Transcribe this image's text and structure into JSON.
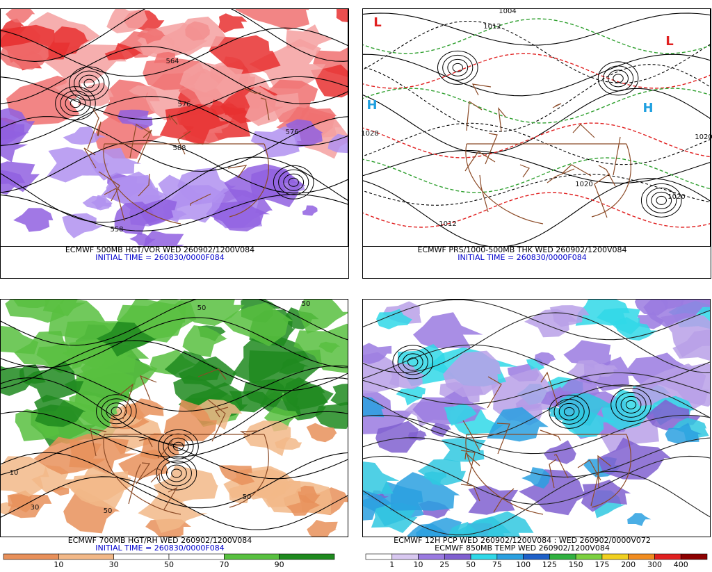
{
  "panels": [
    {
      "caption_lines": [
        {
          "text": "ECMWF 500MB HGT/VOR WED 260902/1200V084",
          "color": "#000000"
        },
        {
          "text": "INITIAL TIME = 260830/0000F084",
          "color": "#0000cc"
        }
      ],
      "theme": "vorticity",
      "map_labels": [
        "564",
        "576",
        "588",
        "558",
        "576"
      ]
    },
    {
      "caption_lines": [
        {
          "text": "ECMWF PRS/1000-500MB THK WED 260902/1200V084",
          "color": "#000000"
        },
        {
          "text": "INITIAL TIME = 260830/0000F084",
          "color": "#0000cc"
        }
      ],
      "theme": "pressure",
      "map_labels": [
        "1004",
        "1012",
        "1020",
        "1028",
        "1012",
        "1020",
        "1020",
        "L",
        "H",
        "L",
        "H"
      ]
    },
    {
      "caption_lines": [
        {
          "text": "ECMWF 700MB HGT/RH WED 260902/1200V084",
          "color": "#000000"
        },
        {
          "text": "INITIAL TIME = 260830/0000F084",
          "color": "#0000cc"
        }
      ],
      "theme": "humidity",
      "map_labels": [
        "50",
        "50",
        "10",
        "30",
        "50",
        "50"
      ],
      "colorbar": {
        "labels": [
          10,
          30,
          50,
          70,
          90
        ],
        "colors": [
          "#e8905a",
          "#f2b888",
          "#ffffff",
          "#ffffff",
          "#58c040",
          "#1e8a1e"
        ]
      }
    },
    {
      "caption_lines": [
        {
          "text": "ECMWF 12H PCP WED 260902/1200V084 : WED 260902/0000V072",
          "color": "#000000"
        },
        {
          "text": "ECMWF 850MB TEMP WED 260902/1200V084",
          "color": "#000000"
        }
      ],
      "theme": "precip",
      "map_labels": [],
      "colorbar": {
        "labels": [
          1,
          10,
          25,
          50,
          75,
          100,
          125,
          150,
          175,
          200,
          300,
          400
        ],
        "colors": [
          "#ffffff",
          "#d8c8f0",
          "#9a7ae0",
          "#8060d0",
          "#30d8e8",
          "#2aa0e0",
          "#1e60c8",
          "#30b040",
          "#7cd040",
          "#f0d020",
          "#f08c20",
          "#e02020",
          "#8c0000"
        ]
      }
    }
  ]
}
